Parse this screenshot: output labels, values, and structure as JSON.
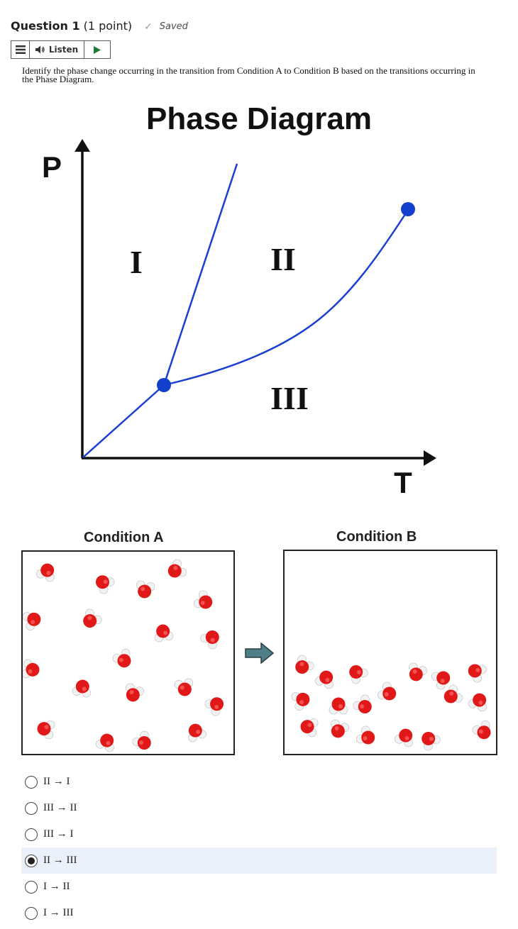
{
  "question": {
    "title": "Question 1",
    "points": "(1 point)",
    "status": "Saved"
  },
  "toolbar": {
    "listen_label": "Listen"
  },
  "prompt": "Identify the phase change occurring in the transition from Condition A to Condition B based on the transitions occurring in the Phase Diagram.",
  "diagram": {
    "title": "Phase Diagram",
    "y_axis": "P",
    "x_axis": "T",
    "region_1": "I",
    "region_2": "II",
    "region_3": "III",
    "line_color": "#1a3fd1",
    "point_color": "#1240cc"
  },
  "conditions": {
    "a_label": "Condition A",
    "b_label": "Condition B",
    "arrow_color": "#4e7f86"
  },
  "options": [
    {
      "label": "II → I",
      "selected": false
    },
    {
      "label": "III → II",
      "selected": false
    },
    {
      "label": "III → I",
      "selected": false
    },
    {
      "label": "II → III",
      "selected": true
    },
    {
      "label": "I → II",
      "selected": false
    },
    {
      "label": "I → III",
      "selected": false
    }
  ]
}
